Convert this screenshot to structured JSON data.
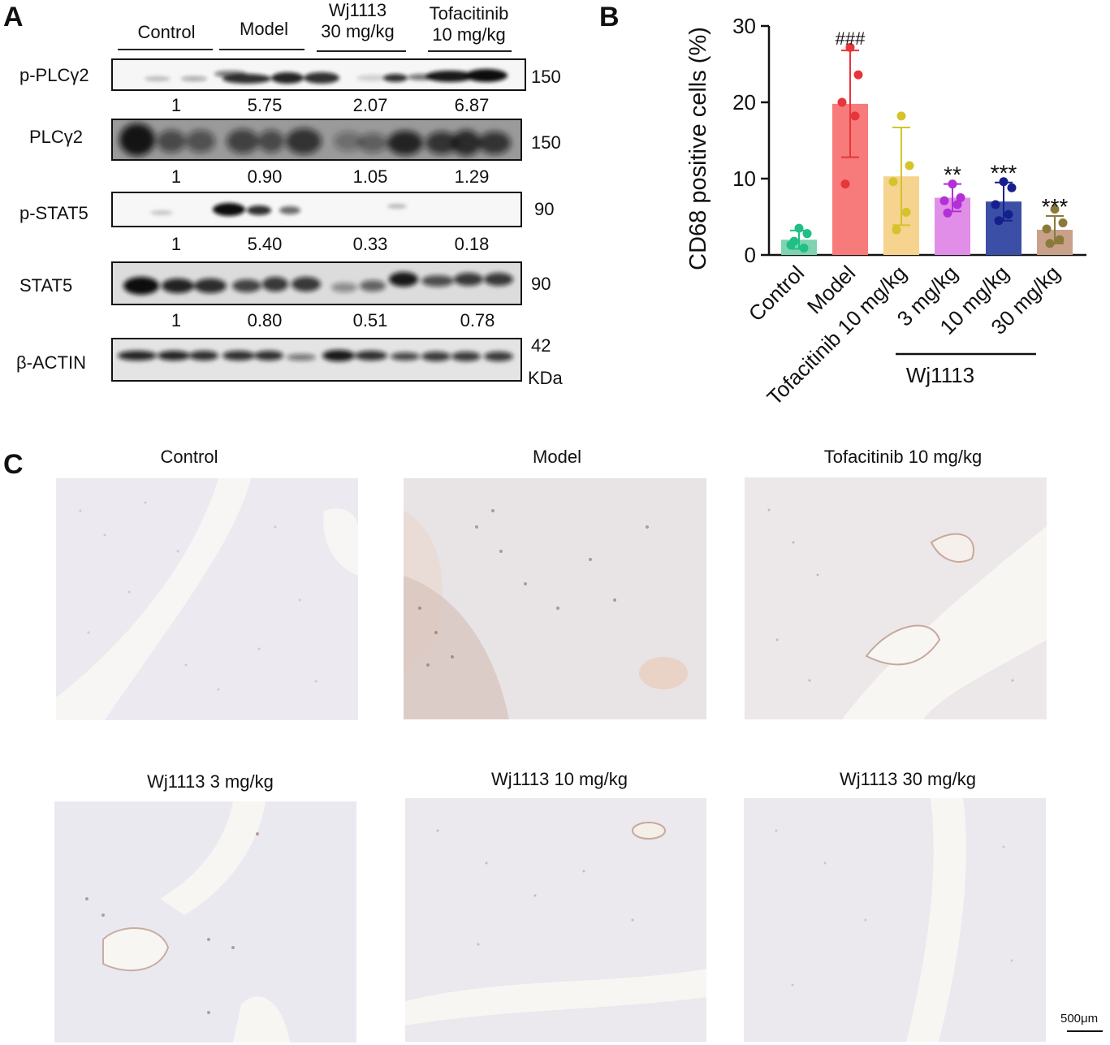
{
  "panel_a": {
    "letter": "A",
    "groups": [
      {
        "line1": "Control",
        "line2": ""
      },
      {
        "line1": "Model",
        "line2": ""
      },
      {
        "line1": "Wj1113",
        "line2": "30 mg/kg"
      },
      {
        "line1": "Tofacitinib",
        "line2": "10 mg/kg"
      }
    ],
    "blots": [
      {
        "protein": "p-PLCγ2",
        "kda": "150",
        "quant": [
          "1",
          "5.75",
          "2.07",
          "6.87"
        ]
      },
      {
        "protein": "PLCγ2",
        "kda": "150",
        "quant": [
          "1",
          "0.90",
          "1.05",
          "1.29"
        ]
      },
      {
        "protein": "p-STAT5",
        "kda": "90",
        "quant": [
          "1",
          "5.40",
          "0.33",
          "0.18"
        ]
      },
      {
        "protein": "STAT5",
        "kda": "90",
        "quant": [
          "1",
          "0.80",
          "0.51",
          "0.78"
        ]
      },
      {
        "protein": "β-ACTIN",
        "kda": "42",
        "quant": []
      }
    ],
    "kda_unit": "KDa"
  },
  "panel_b": {
    "letter": "B",
    "wj_group_label": "Wj1113"
  },
  "chart_data": {
    "type": "bar",
    "ylabel": "CD68 positive cells (%)",
    "ylim": [
      0,
      30
    ],
    "yticks": [
      0,
      10,
      20,
      30
    ],
    "categories": [
      "Control",
      "Model",
      "Tofacitinib 10 mg/kg",
      "3 mg/kg",
      "10 mg/kg",
      "30 mg/kg"
    ],
    "values": [
      2.0,
      19.8,
      10.3,
      7.5,
      7.0,
      3.3
    ],
    "sd": [
      1.2,
      7.0,
      6.4,
      1.8,
      2.5,
      1.8
    ],
    "points": [
      [
        3.5,
        2.8,
        1.3,
        0.9,
        1.8
      ],
      [
        27.2,
        23.6,
        20.0,
        18.2,
        9.3
      ],
      [
        18.2,
        11.7,
        9.6,
        5.6,
        3.3
      ],
      [
        9.3,
        7.5,
        7.1,
        6.6,
        5.5
      ],
      [
        9.6,
        8.8,
        6.6,
        5.3,
        4.5
      ],
      [
        6.0,
        4.2,
        3.4,
        2.0,
        1.5
      ]
    ],
    "colors": [
      "#7fd3b0",
      "#f87b7b",
      "#f6d38e",
      "#e18ee8",
      "#3b4fa6",
      "#c9a18a"
    ],
    "point_colors": [
      "#1fbf86",
      "#e8343b",
      "#d4c32a",
      "#b32fd6",
      "#16208c",
      "#8a7a3a"
    ],
    "annotations": [
      "",
      "###",
      "",
      "**",
      "***",
      "***"
    ]
  },
  "panel_c": {
    "letter": "C",
    "titles": [
      "Control",
      "Model",
      "Tofacitinib 10 mg/kg",
      "Wj1113 3 mg/kg",
      "Wj1113 10 mg/kg",
      "Wj1113 30 mg/kg"
    ],
    "scale_bar": "500μm"
  }
}
